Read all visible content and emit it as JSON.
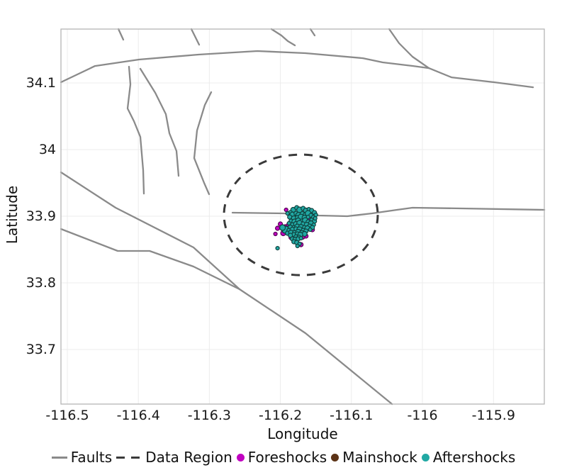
{
  "figure": {
    "background": "#ffffff"
  },
  "chart_data": {
    "type": "scatter",
    "title": "",
    "xlabel": "Longitude",
    "ylabel": "Latitude",
    "xlim": [
      -116.509,
      -115.8284
    ],
    "ylim": [
      33.6181,
      34.1809
    ],
    "grid": true,
    "legend_position": "bottom",
    "xticks": {
      "values": [
        -116.5,
        -116.4,
        -116.3,
        -116.2,
        -116.1,
        -116.0,
        -115.9
      ],
      "labels": [
        "-116.5",
        "-116.4",
        "-116.3",
        "-116.2",
        "-116.1",
        "-116",
        "-115.9"
      ]
    },
    "yticks": {
      "values": [
        34.1,
        34.0,
        33.9,
        33.8,
        33.7
      ],
      "labels": [
        "34.1",
        "34",
        "33.9",
        "33.8",
        "33.7"
      ]
    },
    "styles": {
      "grid_color": "#ececec",
      "border_color": "#b5b5b5",
      "fault_color": "#8a8a8a",
      "fault_width": 2.3,
      "region_color": "#3a3a3a",
      "text_color": "#1a1a1a",
      "tick_font_px": 19
    },
    "data_region": {
      "label": "Data Region",
      "center_lon": -116.1712,
      "center_lat": 33.9021,
      "rx_deg": 0.1083,
      "ry_deg": 0.0904
    },
    "faults": [
      [
        [
          -116.509,
          34.1011
        ],
        [
          -116.4611,
          34.1255
        ],
        [
          -116.3992,
          34.1351
        ],
        [
          -116.3154,
          34.1426
        ],
        [
          -116.2325,
          34.1479
        ],
        [
          -116.1647,
          34.1447
        ],
        [
          -116.0838,
          34.1372
        ],
        [
          -116.0559,
          34.1309
        ],
        [
          -116.013,
          34.1255
        ],
        [
          -115.991,
          34.1223
        ],
        [
          -115.9591,
          34.1085
        ],
        [
          -115.8992,
          34.1011
        ],
        [
          -115.8443,
          34.0936
        ]
      ],
      [
        [
          -116.0469,
          34.1809
        ],
        [
          -116.0329,
          34.1596
        ],
        [
          -116.014,
          34.1394
        ],
        [
          -115.991,
          34.1223
        ]
      ],
      [
        [
          -116.4281,
          34.1809
        ],
        [
          -116.4212,
          34.1649
        ]
      ],
      [
        [
          -116.3254,
          34.1809
        ],
        [
          -116.3144,
          34.1574
        ]
      ],
      [
        [
          -116.2126,
          34.1809
        ],
        [
          -116.1986,
          34.1713
        ],
        [
          -116.1896,
          34.1628
        ],
        [
          -116.1796,
          34.1564
        ]
      ],
      [
        [
          -116.1577,
          34.1809
        ],
        [
          -116.1517,
          34.1713
        ]
      ],
      [
        [
          -116.4132,
          34.1245
        ],
        [
          -116.4112,
          34.0979
        ],
        [
          -116.4152,
          34.0617
        ],
        [
          -116.4062,
          34.0426
        ],
        [
          -116.3972,
          34.0191
        ],
        [
          -116.3932,
          33.9691
        ],
        [
          -116.3922,
          33.934
        ]
      ],
      [
        [
          -116.3972,
          34.1213
        ],
        [
          -116.3762,
          34.0851
        ],
        [
          -116.3613,
          34.0532
        ],
        [
          -116.3563,
          34.0245
        ],
        [
          -116.3463,
          33.9979
        ],
        [
          -116.3433,
          33.9606
        ]
      ],
      [
        [
          -116.2974,
          34.0862
        ],
        [
          -116.3064,
          34.067
        ],
        [
          -116.3174,
          34.0287
        ],
        [
          -116.3214,
          33.9872
        ],
        [
          -116.3074,
          33.95
        ],
        [
          -116.3004,
          33.933
        ]
      ],
      [
        [
          -116.509,
          33.966
        ],
        [
          -116.4321,
          33.9128
        ],
        [
          -116.3224,
          33.8532
        ],
        [
          -116.2575,
          33.7904
        ],
        [
          -116.1647,
          33.7245
        ],
        [
          -116.0429,
          33.6181
        ]
      ],
      [
        [
          -116.509,
          33.8809
        ],
        [
          -116.4291,
          33.8479
        ],
        [
          -116.3842,
          33.8479
        ],
        [
          -116.3224,
          33.8245
        ],
        [
          -116.2575,
          33.7904
        ]
      ],
      [
        [
          -116.2675,
          33.9053
        ],
        [
          -116.1956,
          33.9043
        ],
        [
          -116.1457,
          33.9011
        ],
        [
          -116.1058,
          33.9
        ],
        [
          -116.0709,
          33.9043
        ],
        [
          -116.0359,
          33.9096
        ],
        [
          -116.014,
          33.9128
        ],
        [
          -115.9461,
          33.9117
        ],
        [
          -115.8283,
          33.9096
        ]
      ]
    ],
    "series": [
      {
        "name": "Foreshocks",
        "color": "#c103c1",
        "stroke": "#550255",
        "points": [
          [
            -116.192,
            33.9096,
            2.5
          ],
          [
            -116.2,
            33.8883,
            3
          ],
          [
            -116.204,
            33.8819,
            3
          ],
          [
            -116.207,
            33.8734,
            2.5
          ],
          [
            -116.196,
            33.8745,
            3.5
          ],
          [
            -116.193,
            33.8809,
            6
          ],
          [
            -116.189,
            33.8862,
            3
          ],
          [
            -116.185,
            33.8957,
            2.5
          ],
          [
            -116.168,
            33.8862,
            3
          ],
          [
            -116.161,
            33.8904,
            3
          ],
          [
            -116.155,
            33.8798,
            3
          ],
          [
            -116.164,
            33.8702,
            3
          ],
          [
            -116.169,
            33.8691,
            3.5
          ],
          [
            -116.171,
            33.8574,
            3
          ],
          [
            -116.185,
            33.8681,
            3
          ],
          [
            -116.179,
            33.8777,
            3
          ],
          [
            -116.159,
            33.8968,
            2.5
          ],
          [
            -116.182,
            33.8862,
            3
          ]
        ]
      },
      {
        "name": "Mainshock",
        "color": "#5c3317",
        "stroke": "#241107",
        "points": [
          [
            -116.176,
            33.8915,
            6.5
          ]
        ]
      },
      {
        "name": "Aftershocks",
        "color": "#21a9a4",
        "stroke": "#10413e",
        "points": [
          [
            -116.182,
            33.9096,
            3.5
          ],
          [
            -116.177,
            33.9128,
            3
          ],
          [
            -116.173,
            33.9096,
            4
          ],
          [
            -116.168,
            33.9117,
            3
          ],
          [
            -116.164,
            33.9085,
            3.5
          ],
          [
            -116.16,
            33.9106,
            2.5
          ],
          [
            -116.156,
            33.9085,
            3
          ],
          [
            -116.152,
            33.9053,
            3
          ],
          [
            -116.186,
            33.9053,
            3
          ],
          [
            -116.19,
            33.9043,
            2.5
          ],
          [
            -116.183,
            33.9021,
            4
          ],
          [
            -116.178,
            33.9043,
            3
          ],
          [
            -116.174,
            33.9011,
            4.5
          ],
          [
            -116.169,
            33.9032,
            3.5
          ],
          [
            -116.165,
            33.9021,
            3
          ],
          [
            -116.161,
            33.9043,
            4
          ],
          [
            -116.157,
            33.9011,
            3
          ],
          [
            -116.153,
            33.8979,
            3.5
          ],
          [
            -116.187,
            33.8989,
            3
          ],
          [
            -116.181,
            33.8968,
            3.5
          ],
          [
            -116.176,
            33.8979,
            3
          ],
          [
            -116.171,
            33.8989,
            4
          ],
          [
            -116.166,
            33.8979,
            3.5
          ],
          [
            -116.161,
            33.8989,
            2.5
          ],
          [
            -116.156,
            33.8947,
            2.5
          ],
          [
            -116.152,
            33.8926,
            3
          ],
          [
            -116.15,
            33.9021,
            2.5
          ],
          [
            -116.185,
            33.8926,
            3
          ],
          [
            -116.18,
            33.8915,
            4
          ],
          [
            -116.175,
            33.8936,
            3.5
          ],
          [
            -116.17,
            33.8926,
            3
          ],
          [
            -116.165,
            33.8936,
            4
          ],
          [
            -116.161,
            33.8915,
            3
          ],
          [
            -116.157,
            33.8894,
            3.5
          ],
          [
            -116.153,
            33.8872,
            2.5
          ],
          [
            -116.188,
            33.8894,
            2.5
          ],
          [
            -116.183,
            33.8872,
            3
          ],
          [
            -116.178,
            33.8883,
            3.5
          ],
          [
            -116.173,
            33.8894,
            4
          ],
          [
            -116.168,
            33.8883,
            3
          ],
          [
            -116.163,
            33.8872,
            3.5
          ],
          [
            -116.159,
            33.8851,
            3
          ],
          [
            -116.155,
            33.883,
            3
          ],
          [
            -116.191,
            33.8819,
            3
          ],
          [
            -116.186,
            33.883,
            3.5
          ],
          [
            -116.181,
            33.883,
            3
          ],
          [
            -116.176,
            33.884,
            4
          ],
          [
            -116.171,
            33.884,
            3.5
          ],
          [
            -116.166,
            33.883,
            3
          ],
          [
            -116.162,
            33.8819,
            3.5
          ],
          [
            -116.158,
            33.8798,
            2.5
          ],
          [
            -116.193,
            33.8798,
            5
          ],
          [
            -116.188,
            33.8787,
            3
          ],
          [
            -116.183,
            33.8798,
            3.5
          ],
          [
            -116.178,
            33.8809,
            3
          ],
          [
            -116.173,
            33.8798,
            4
          ],
          [
            -116.168,
            33.8787,
            3
          ],
          [
            -116.164,
            33.8777,
            3
          ],
          [
            -116.197,
            33.883,
            4
          ],
          [
            -116.19,
            33.8745,
            3
          ],
          [
            -116.185,
            33.8755,
            3.5
          ],
          [
            -116.18,
            33.8755,
            3
          ],
          [
            -116.175,
            33.8766,
            3.5
          ],
          [
            -116.17,
            33.8755,
            3
          ],
          [
            -116.166,
            33.8734,
            3.5
          ],
          [
            -116.181,
            33.8723,
            3
          ],
          [
            -116.176,
            33.8734,
            3
          ],
          [
            -116.172,
            33.8723,
            3.5
          ],
          [
            -116.186,
            33.8713,
            3
          ],
          [
            -116.178,
            33.8691,
            3
          ],
          [
            -116.174,
            33.8691,
            2.5
          ],
          [
            -116.183,
            33.866,
            3
          ],
          [
            -116.179,
            33.8649,
            3.5
          ],
          [
            -116.175,
            33.866,
            3
          ],
          [
            -116.171,
            33.867,
            2.5
          ],
          [
            -116.181,
            33.8617,
            3
          ],
          [
            -116.177,
            33.8606,
            3
          ],
          [
            -116.173,
            33.8585,
            2.5
          ],
          [
            -116.176,
            33.8553,
            2.5
          ],
          [
            -116.204,
            33.8521,
            2.5
          ],
          [
            -116.151,
            33.8968,
            2.5
          ]
        ]
      }
    ],
    "legend": [
      {
        "label": "Faults",
        "marker": "line",
        "color": "#8a8a8a"
      },
      {
        "label": "Data Region",
        "marker": "dashed-line",
        "color": "#3a3a3a"
      },
      {
        "label": "Foreshocks",
        "marker": "circle",
        "color": "#c103c1"
      },
      {
        "label": "Mainshock",
        "marker": "circle",
        "color": "#5c3317"
      },
      {
        "label": "Aftershocks",
        "marker": "circle",
        "color": "#21a9a4"
      }
    ]
  }
}
